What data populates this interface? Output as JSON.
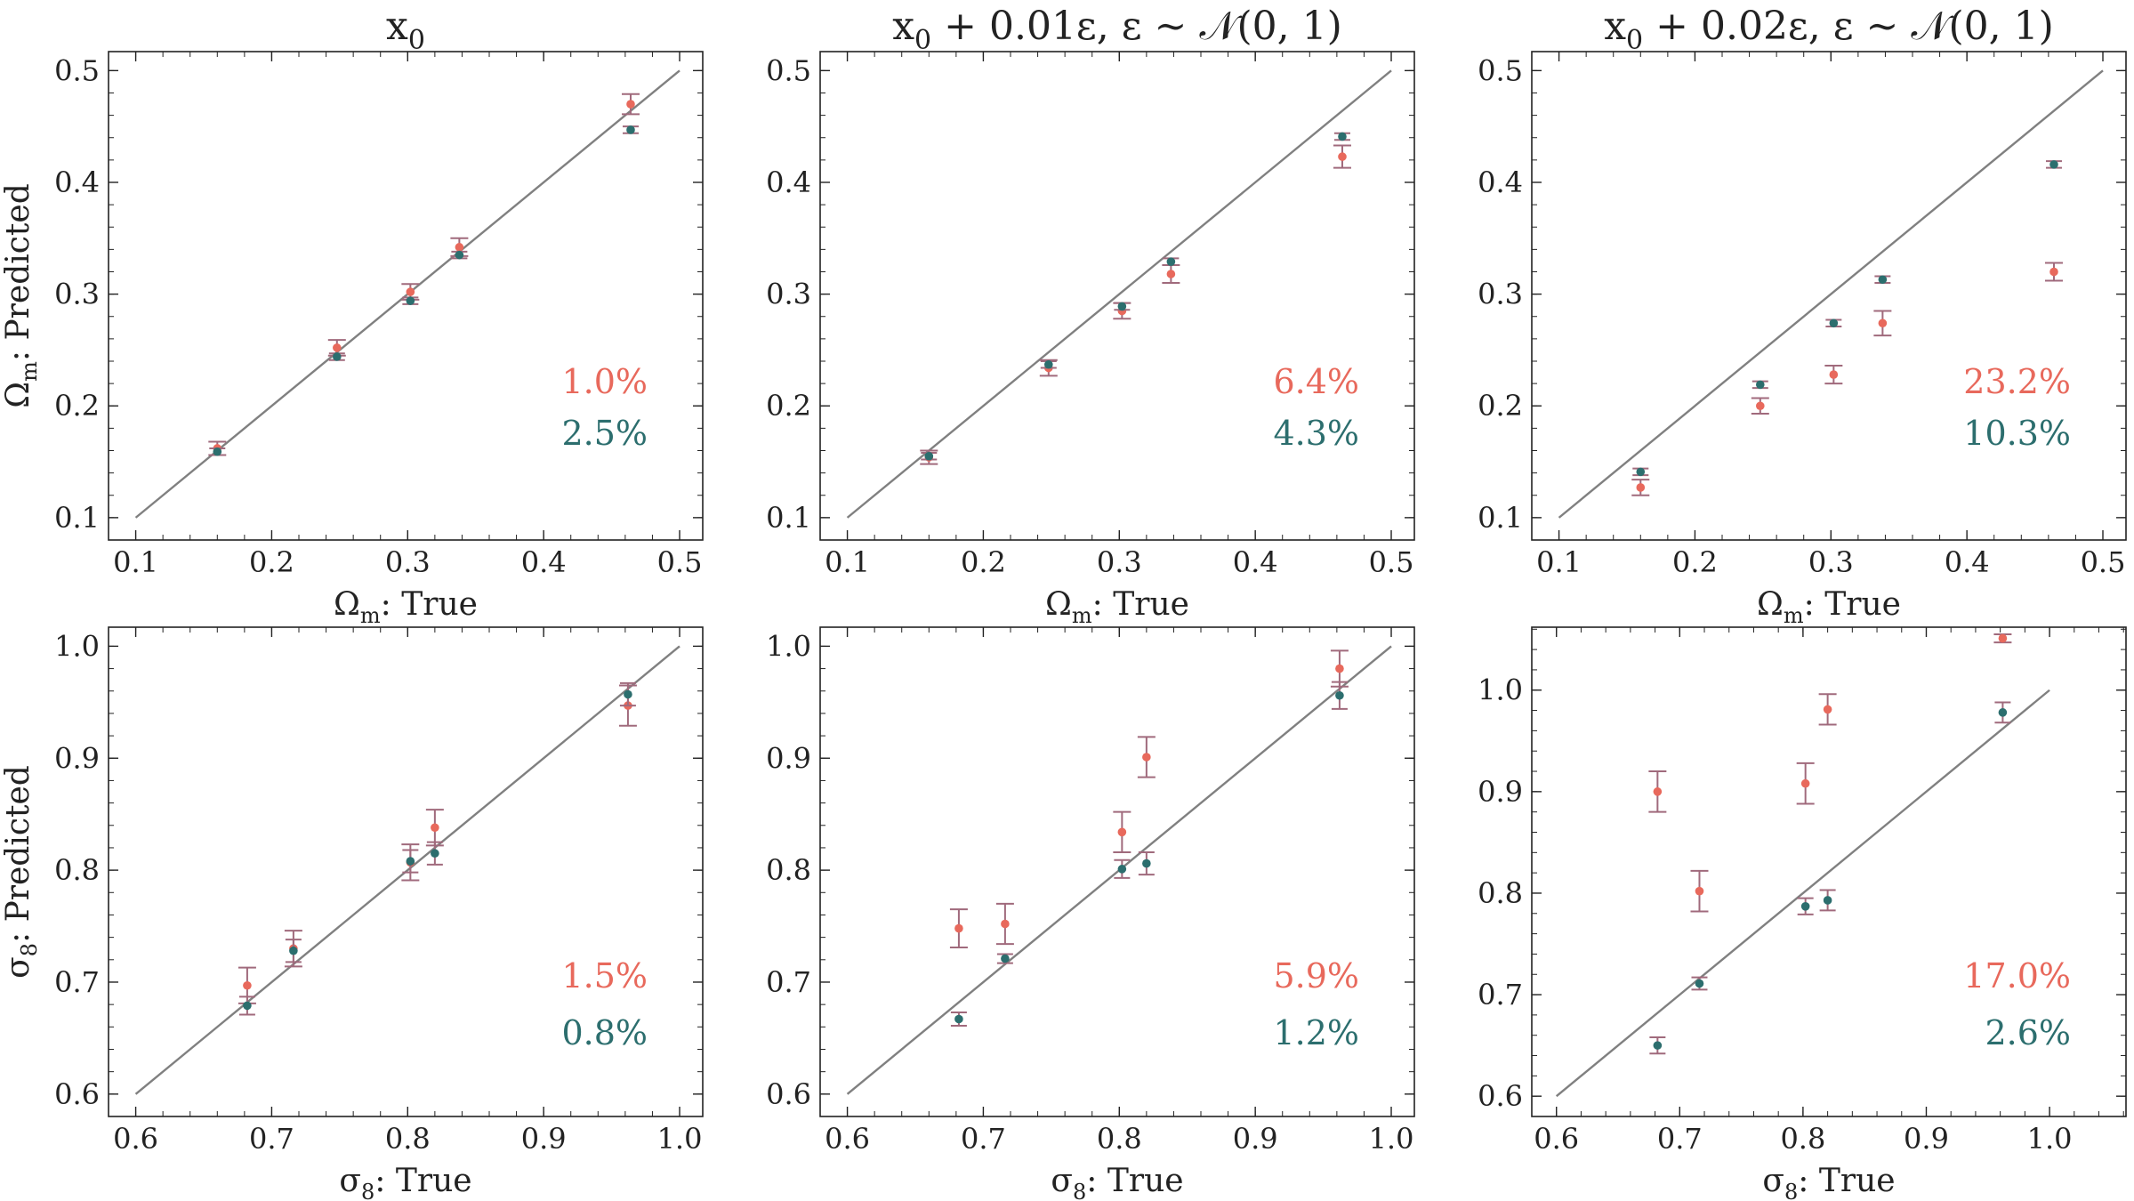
{
  "colors": {
    "red": "#e8695c",
    "teal": "#2c6e6e",
    "errorbar": "#a06a7c",
    "identity_line": "#808080",
    "axes": "#222222"
  },
  "chart_data": [
    {
      "type": "scatter",
      "title": "x0",
      "title_parts": [
        {
          "t": "x"
        },
        {
          "t": "0",
          "sub": true
        }
      ],
      "xlabel_parts": [
        {
          "t": "Ω"
        },
        {
          "t": "m",
          "sub": true
        },
        {
          "t": ":  True"
        }
      ],
      "ylabel_parts": [
        {
          "t": "Ω"
        },
        {
          "t": "m",
          "sub": true
        },
        {
          "t": ":  Predicted"
        }
      ],
      "xlim": [
        0.08,
        0.517
      ],
      "ylim": [
        0.08,
        0.517
      ],
      "xticks": [
        0.1,
        0.2,
        0.3,
        0.4,
        0.5
      ],
      "yticks": [
        0.1,
        0.2,
        0.3,
        0.4,
        0.5
      ],
      "tick_labels": [
        "0.1",
        "0.2",
        "0.3",
        "0.4",
        "0.5"
      ],
      "identity": [
        0.1,
        0.5
      ],
      "series": [
        {
          "color_key": "red",
          "x": [
            0.16,
            0.248,
            0.302,
            0.338,
            0.464
          ],
          "y": [
            0.162,
            0.252,
            0.302,
            0.342,
            0.47
          ],
          "err": [
            0.006,
            0.007,
            0.007,
            0.008,
            0.009
          ]
        },
        {
          "color_key": "teal",
          "x": [
            0.16,
            0.248,
            0.302,
            0.338,
            0.464
          ],
          "y": [
            0.159,
            0.244,
            0.294,
            0.335,
            0.447
          ],
          "err": [
            0.003,
            0.003,
            0.003,
            0.003,
            0.003
          ]
        }
      ],
      "annotations": [
        {
          "text": "1.0%",
          "color_key": "red"
        },
        {
          "text": "2.5%",
          "color_key": "teal"
        }
      ]
    },
    {
      "type": "scatter",
      "title": "x0 + 0.01ε, ε ∼ N(0, 1)",
      "title_parts": [
        {
          "t": "x"
        },
        {
          "t": "0",
          "sub": true
        },
        {
          "t": " + 0.01ε, ε ∼ 𝒩(0, 1)"
        }
      ],
      "xlabel_parts": [
        {
          "t": "Ω"
        },
        {
          "t": "m",
          "sub": true
        },
        {
          "t": ":  True"
        }
      ],
      "ylabel_parts": [],
      "xlim": [
        0.08,
        0.517
      ],
      "ylim": [
        0.08,
        0.517
      ],
      "xticks": [
        0.1,
        0.2,
        0.3,
        0.4,
        0.5
      ],
      "yticks": [
        0.1,
        0.2,
        0.3,
        0.4,
        0.5
      ],
      "tick_labels": [
        "0.1",
        "0.2",
        "0.3",
        "0.4",
        "0.5"
      ],
      "identity": [
        0.1,
        0.5
      ],
      "series": [
        {
          "color_key": "red",
          "x": [
            0.16,
            0.248,
            0.302,
            0.338,
            0.464
          ],
          "y": [
            0.154,
            0.234,
            0.285,
            0.318,
            0.423
          ],
          "err": [
            0.006,
            0.007,
            0.007,
            0.008,
            0.01
          ]
        },
        {
          "color_key": "teal",
          "x": [
            0.16,
            0.248,
            0.302,
            0.338,
            0.464
          ],
          "y": [
            0.155,
            0.237,
            0.289,
            0.329,
            0.441
          ],
          "err": [
            0.003,
            0.003,
            0.003,
            0.003,
            0.003
          ]
        }
      ],
      "annotations": [
        {
          "text": "6.4%",
          "color_key": "red"
        },
        {
          "text": "4.3%",
          "color_key": "teal"
        }
      ]
    },
    {
      "type": "scatter",
      "title": "x0 + 0.02ε, ε ∼ N(0, 1)",
      "title_parts": [
        {
          "t": "x"
        },
        {
          "t": "0",
          "sub": true
        },
        {
          "t": " + 0.02ε, ε ∼ 𝒩(0, 1)"
        }
      ],
      "xlabel_parts": [
        {
          "t": "Ω"
        },
        {
          "t": "m",
          "sub": true
        },
        {
          "t": ":  True"
        }
      ],
      "ylabel_parts": [],
      "xlim": [
        0.08,
        0.517
      ],
      "ylim": [
        0.08,
        0.517
      ],
      "xticks": [
        0.1,
        0.2,
        0.3,
        0.4,
        0.5
      ],
      "yticks": [
        0.1,
        0.2,
        0.3,
        0.4,
        0.5
      ],
      "tick_labels": [
        "0.1",
        "0.2",
        "0.3",
        "0.4",
        "0.5"
      ],
      "identity": [
        0.1,
        0.5
      ],
      "series": [
        {
          "color_key": "red",
          "x": [
            0.16,
            0.248,
            0.302,
            0.338,
            0.464
          ],
          "y": [
            0.127,
            0.2,
            0.228,
            0.274,
            0.32
          ],
          "err": [
            0.007,
            0.007,
            0.008,
            0.011,
            0.008
          ]
        },
        {
          "color_key": "teal",
          "x": [
            0.16,
            0.248,
            0.302,
            0.338,
            0.464
          ],
          "y": [
            0.141,
            0.219,
            0.274,
            0.313,
            0.416
          ],
          "err": [
            0.003,
            0.003,
            0.003,
            0.003,
            0.003
          ]
        }
      ],
      "annotations": [
        {
          "text": "23.2%",
          "color_key": "red"
        },
        {
          "text": "10.3%",
          "color_key": "teal"
        }
      ]
    },
    {
      "type": "scatter",
      "title": "",
      "title_parts": [],
      "xlabel_parts": [
        {
          "t": "σ"
        },
        {
          "t": "8",
          "sub": true
        },
        {
          "t": ":  True"
        }
      ],
      "ylabel_parts": [
        {
          "t": "σ"
        },
        {
          "t": "8",
          "sub": true
        },
        {
          "t": ":  Predicted"
        }
      ],
      "xlim": [
        0.58,
        1.017
      ],
      "ylim": [
        0.58,
        1.017
      ],
      "xticks": [
        0.6,
        0.7,
        0.8,
        0.9,
        1.0
      ],
      "yticks": [
        0.6,
        0.7,
        0.8,
        0.9,
        1.0
      ],
      "tick_labels": [
        "0.6",
        "0.7",
        "0.8",
        "0.9",
        "1.0"
      ],
      "identity": [
        0.6,
        1.0
      ],
      "series": [
        {
          "color_key": "red",
          "x": [
            0.682,
            0.716,
            0.802,
            0.82,
            0.962
          ],
          "y": [
            0.697,
            0.73,
            0.807,
            0.838,
            0.947
          ],
          "err": [
            0.016,
            0.016,
            0.016,
            0.016,
            0.018
          ]
        },
        {
          "color_key": "teal",
          "x": [
            0.682,
            0.716,
            0.802,
            0.82,
            0.962
          ],
          "y": [
            0.679,
            0.728,
            0.808,
            0.815,
            0.957
          ],
          "err": [
            0.008,
            0.01,
            0.01,
            0.01,
            0.01
          ]
        }
      ],
      "annotations": [
        {
          "text": "1.5%",
          "color_key": "red"
        },
        {
          "text": "0.8%",
          "color_key": "teal"
        }
      ]
    },
    {
      "type": "scatter",
      "title": "",
      "title_parts": [],
      "xlabel_parts": [
        {
          "t": "σ"
        },
        {
          "t": "8",
          "sub": true
        },
        {
          "t": ":  True"
        }
      ],
      "ylabel_parts": [],
      "xlim": [
        0.58,
        1.017
      ],
      "ylim": [
        0.58,
        1.017
      ],
      "xticks": [
        0.6,
        0.7,
        0.8,
        0.9,
        1.0
      ],
      "yticks": [
        0.6,
        0.7,
        0.8,
        0.9,
        1.0
      ],
      "tick_labels": [
        "0.6",
        "0.7",
        "0.8",
        "0.9",
        "1.0"
      ],
      "identity": [
        0.6,
        1.0
      ],
      "series": [
        {
          "color_key": "red",
          "x": [
            0.682,
            0.716,
            0.802,
            0.82,
            0.962
          ],
          "y": [
            0.748,
            0.752,
            0.834,
            0.901,
            0.98
          ],
          "err": [
            0.017,
            0.018,
            0.018,
            0.018,
            0.016
          ]
        },
        {
          "color_key": "teal",
          "x": [
            0.682,
            0.716,
            0.802,
            0.82,
            0.962
          ],
          "y": [
            0.667,
            0.721,
            0.801,
            0.806,
            0.956
          ],
          "err": [
            0.006,
            0.004,
            0.008,
            0.01,
            0.012
          ]
        }
      ],
      "annotations": [
        {
          "text": "5.9%",
          "color_key": "red"
        },
        {
          "text": "1.2%",
          "color_key": "teal"
        }
      ]
    },
    {
      "type": "scatter",
      "title": "",
      "title_parts": [],
      "xlabel_parts": [
        {
          "t": "σ"
        },
        {
          "t": "8",
          "sub": true
        },
        {
          "t": ":  True"
        }
      ],
      "ylabel_parts": [],
      "xlim": [
        0.58,
        1.062
      ],
      "ylim": [
        0.58,
        1.062
      ],
      "xticks": [
        0.6,
        0.7,
        0.8,
        0.9,
        1.0
      ],
      "yticks": [
        0.6,
        0.7,
        0.8,
        0.9,
        1.0
      ],
      "tick_labels": [
        "0.6",
        "0.7",
        "0.8",
        "0.9",
        "1.0"
      ],
      "identity": [
        0.6,
        1.0
      ],
      "series": [
        {
          "color_key": "red",
          "x": [
            0.682,
            0.716,
            0.802,
            0.82,
            0.962
          ],
          "y": [
            0.9,
            0.802,
            0.908,
            0.981,
            1.051
          ],
          "err": [
            0.02,
            0.02,
            0.02,
            0.015,
            0.004
          ]
        },
        {
          "color_key": "teal",
          "x": [
            0.682,
            0.716,
            0.802,
            0.82,
            0.962
          ],
          "y": [
            0.65,
            0.711,
            0.787,
            0.793,
            0.978
          ],
          "err": [
            0.008,
            0.006,
            0.008,
            0.01,
            0.01
          ]
        }
      ],
      "annotations": [
        {
          "text": "17.0%",
          "color_key": "red"
        },
        {
          "text": "2.6%",
          "color_key": "teal"
        }
      ]
    }
  ]
}
